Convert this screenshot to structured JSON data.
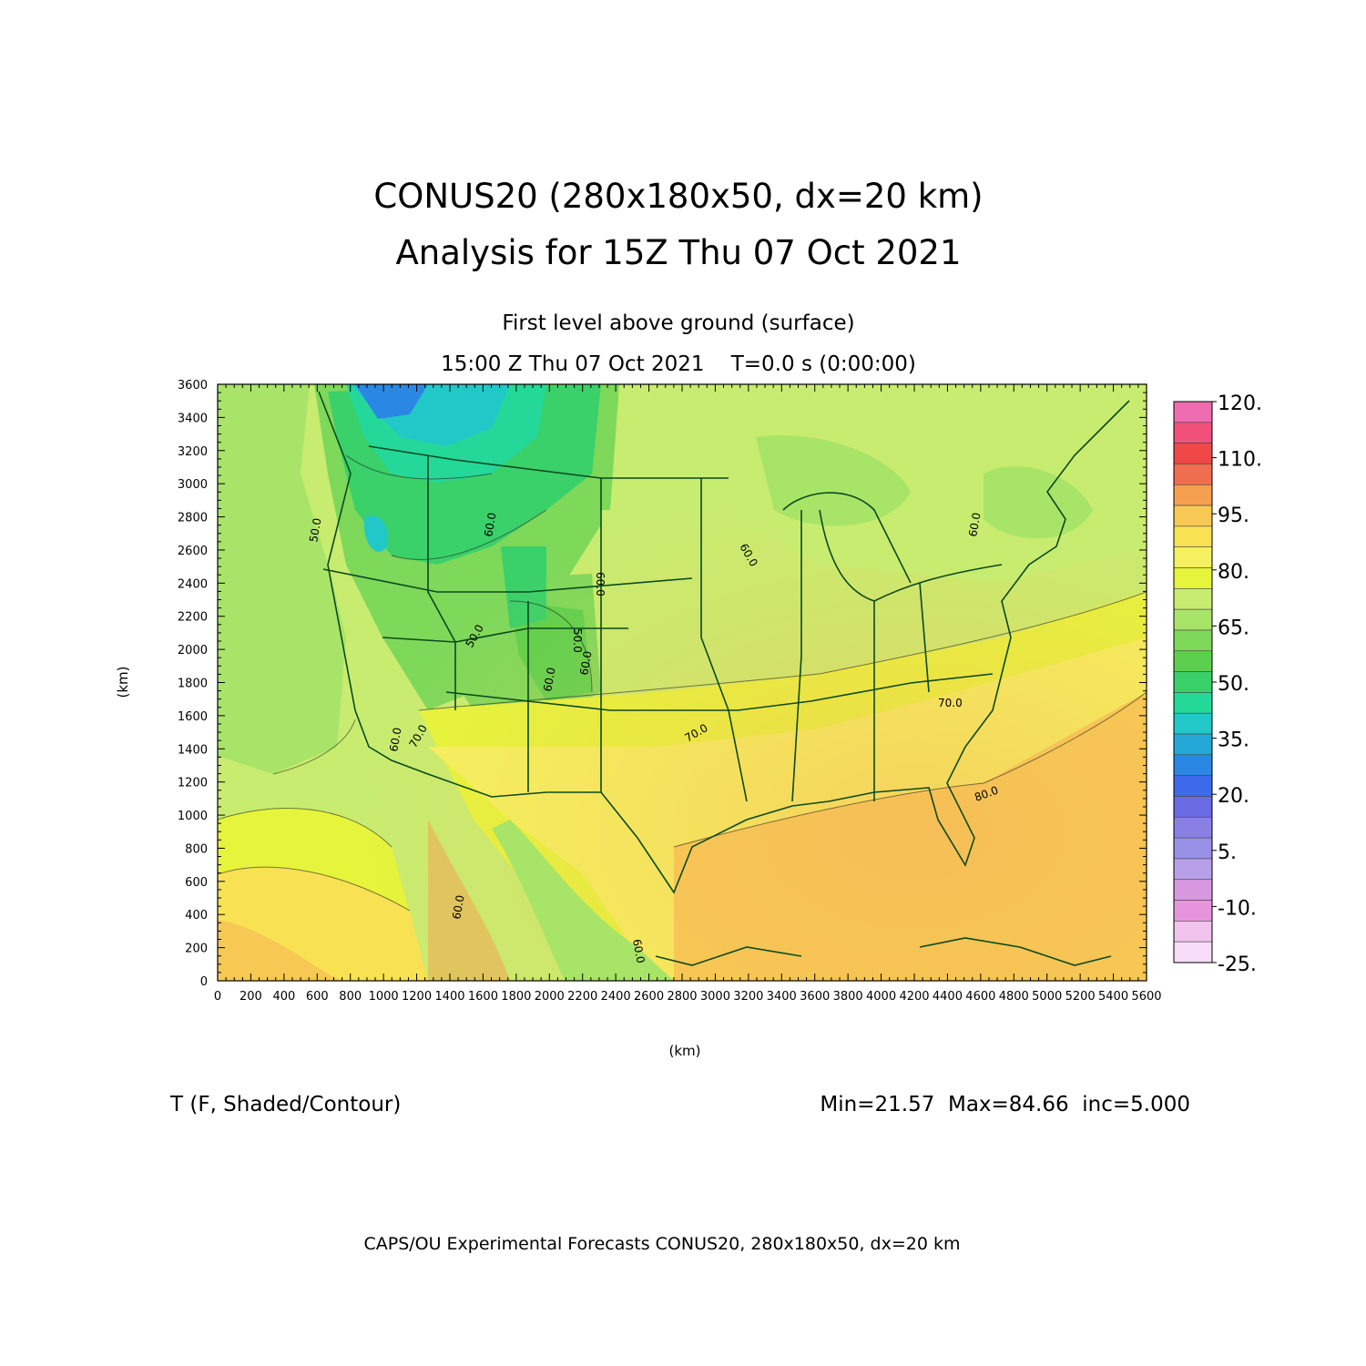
{
  "title": {
    "line1": "CONUS20 (280x180x50, dx=20 km)",
    "line2": "Analysis for 15Z Thu 07 Oct 2021"
  },
  "subtitle": {
    "level": "First level above ground (surface)",
    "time": "15:00 Z Thu 07 Oct 2021    T=0.0 s (0:00:00)"
  },
  "axes": {
    "xlabel": "(km)",
    "ylabel": "(km)",
    "x_ticks": [
      "0",
      "200",
      "400",
      "600",
      "800",
      "1000",
      "1200",
      "1400",
      "1600",
      "1800",
      "2000",
      "2200",
      "2400",
      "2600",
      "2800",
      "3000",
      "3200",
      "3400",
      "3600",
      "3800",
      "4000",
      "4200",
      "4400",
      "4600",
      "4800",
      "5000",
      "5200",
      "5400",
      "5600"
    ],
    "y_ticks": [
      "0",
      "200",
      "400",
      "600",
      "800",
      "1000",
      "1200",
      "1400",
      "1600",
      "1800",
      "2000",
      "2200",
      "2400",
      "2600",
      "2800",
      "3000",
      "3200",
      "3400",
      "3600"
    ],
    "x_range_km": [
      0,
      5600
    ],
    "y_range_km": [
      0,
      3600
    ]
  },
  "colorbar": {
    "labels": [
      "120.",
      "110.",
      "95.",
      "80.",
      "65.",
      "50.",
      "35.",
      "20.",
      "5.",
      "-10.",
      "-25."
    ],
    "colors": [
      "#f06cb0",
      "#f0507a",
      "#f04848",
      "#f06e50",
      "#f5a050",
      "#f7c854",
      "#f8e254",
      "#f5f060",
      "#e6f43c",
      "#c8ec70",
      "#a8e468",
      "#7ed85a",
      "#5cd04e",
      "#3ad06a",
      "#24d89a",
      "#22c8c8",
      "#24a8d8",
      "#2a88e4",
      "#3c6aea",
      "#6a6ae4",
      "#8a80e4",
      "#9890e6",
      "#b8a0e8",
      "#d898e0",
      "#e694dc",
      "#f0c2ec",
      "#f6dcf6"
    ]
  },
  "contour_labels": [
    "50.0",
    "60.0",
    "60.0",
    "60.0",
    "50.0",
    "60.0",
    "50.0",
    "60.0",
    "70.0",
    "70.0",
    "70.0",
    "60.0",
    "80.0",
    "60.0",
    "60.0",
    "60.0"
  ],
  "info": {
    "left": "T (F, Shaded/Contour)",
    "right": "Min=21.57  Max=84.66  inc=5.000"
  },
  "footer": "CAPS/OU Experimental Forecasts  CONUS20, 280x180x50, dx=20 km"
}
